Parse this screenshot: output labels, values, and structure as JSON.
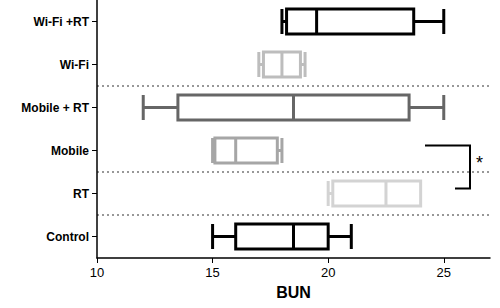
{
  "chart_data": {
    "type": "boxplot",
    "orientation": "horizontal",
    "x_label": "BUN",
    "categories": [
      "Control",
      "RT",
      "Mobile",
      "Mobile + RT",
      "Wi-Fi",
      "Wi-Fi +RT"
    ],
    "boxes": [
      [
        15,
        16,
        18.5,
        20,
        21
      ],
      [
        20,
        20.2,
        22.5,
        24,
        24
      ],
      [
        15,
        15.1,
        16,
        17.8,
        18
      ],
      [
        12,
        13.5,
        18.5,
        23.5,
        25
      ],
      [
        17,
        17.2,
        18,
        18.8,
        19
      ],
      [
        18,
        18.2,
        19.5,
        23.7,
        25
      ]
    ],
    "colors": [
      "#000000",
      "#d3d3d3",
      "#a6a6a6",
      "#666666",
      "#bdbdbd",
      "#000000"
    ],
    "xlim": [
      10,
      27
    ],
    "xticks": [
      10,
      15,
      20,
      25
    ],
    "grid": false,
    "group_sizes": [
      1,
      1,
      2,
      2
    ],
    "annotations": [
      {
        "text": "*",
        "between": [
          "Mobile",
          "RT"
        ]
      }
    ]
  }
}
